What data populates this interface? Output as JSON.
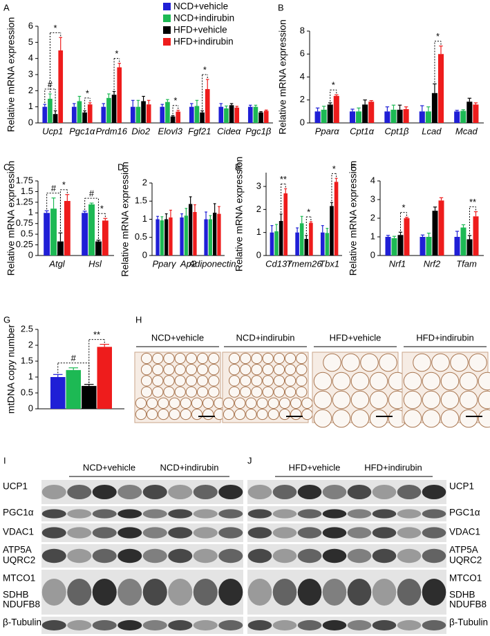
{
  "chart_data": [
    {
      "type": "bar",
      "panel": "A",
      "ylabel": "Relative mRNA expression",
      "legend": "top",
      "categories": [
        "Ucp1",
        "Pgc1α",
        "Prdm16",
        "Dio2",
        "Elovl3",
        "Fgf21",
        "Cideα",
        "Pgc1β"
      ],
      "series": [
        {
          "name": "NCD+vehicle",
          "color": "#1f1fd6",
          "values": [
            1.0,
            1.0,
            1.0,
            1.0,
            1.0,
            1.0,
            1.0,
            1.0
          ],
          "errors": [
            0.15,
            0.2,
            0.2,
            0.4,
            0.15,
            0.2,
            0.2,
            0.1
          ]
        },
        {
          "name": "NCD+indirubin",
          "color": "#1db954",
          "values": [
            1.5,
            1.35,
            1.55,
            1.0,
            1.3,
            1.05,
            0.9,
            1.0
          ],
          "errors": [
            0.3,
            0.3,
            0.25,
            0.4,
            0.15,
            0.35,
            0.15,
            0.1
          ]
        },
        {
          "name": "HFD+vehicle",
          "color": "#000000",
          "values": [
            0.55,
            0.65,
            1.75,
            1.35,
            0.4,
            0.65,
            1.1,
            0.65
          ],
          "errors": [
            0.2,
            0.1,
            0.2,
            0.3,
            0.05,
            0.1,
            0.1,
            0.05
          ]
        },
        {
          "name": "HFD+indirubin",
          "color": "#ee1c1c",
          "values": [
            4.5,
            1.15,
            3.45,
            1.15,
            0.7,
            2.1,
            0.95,
            0.75
          ],
          "errors": [
            0.8,
            0.1,
            0.25,
            0.25,
            0.08,
            0.6,
            0.08,
            0.05
          ]
        }
      ],
      "ylim": [
        0,
        6
      ],
      "yticks": [
        0,
        1,
        2,
        3,
        4,
        5,
        6
      ],
      "annotations": [
        {
          "text": "#",
          "category": 0,
          "series": [
            0,
            2
          ]
        },
        {
          "text": "*",
          "category": 0,
          "series": [
            1,
            3
          ]
        },
        {
          "text": "*",
          "category": 1,
          "series": [
            2,
            3
          ]
        },
        {
          "text": "*",
          "category": 2,
          "series": [
            2,
            3
          ]
        },
        {
          "text": "*",
          "category": 4,
          "series": [
            2,
            3
          ]
        },
        {
          "text": "*",
          "category": 5,
          "series": [
            2,
            3
          ]
        }
      ]
    },
    {
      "type": "bar",
      "panel": "B",
      "ylabel": "Relative mRNA expression",
      "categories": [
        "Pparα",
        "Cpt1α",
        "Cpt1β",
        "Lcad",
        "Mcad"
      ],
      "series": [
        {
          "color": "#1f1fd6",
          "values": [
            1.0,
            1.0,
            1.0,
            1.0,
            1.0
          ],
          "errors": [
            0.3,
            0.2,
            0.4,
            0.5,
            0.1
          ]
        },
        {
          "color": "#1db954",
          "values": [
            1.15,
            1.0,
            1.15,
            1.0,
            1.05
          ],
          "errors": [
            0.3,
            0.3,
            0.4,
            0.4,
            0.1
          ]
        },
        {
          "color": "#000000",
          "values": [
            1.6,
            1.6,
            1.15,
            2.6,
            1.85
          ],
          "errors": [
            0.15,
            0.4,
            0.4,
            0.8,
            0.3
          ]
        },
        {
          "color": "#ee1c1c",
          "values": [
            2.35,
            1.85,
            1.2,
            6.0,
            1.6
          ],
          "errors": [
            0.1,
            0.1,
            0.2,
            0.7,
            0.15
          ]
        }
      ],
      "ylim": [
        0,
        8
      ],
      "yticks": [
        0,
        2,
        4,
        6,
        8
      ],
      "annotations": [
        {
          "text": "*",
          "category": 0,
          "series": [
            2,
            3
          ]
        },
        {
          "text": "*",
          "category": 3,
          "series": [
            2,
            3
          ]
        }
      ]
    },
    {
      "type": "bar",
      "panel": "C",
      "ylabel": "Relative mRNA expression",
      "categories": [
        "Atgl",
        "Hsl"
      ],
      "series": [
        {
          "color": "#1f1fd6",
          "values": [
            1.0,
            1.0
          ],
          "errors": [
            0.05,
            0.04
          ]
        },
        {
          "color": "#1db954",
          "values": [
            1.1,
            1.2
          ],
          "errors": [
            0.25,
            0.03
          ]
        },
        {
          "color": "#000000",
          "values": [
            0.33,
            0.33
          ],
          "errors": [
            0.2,
            0.03
          ]
        },
        {
          "color": "#ee1c1c",
          "values": [
            1.28,
            0.82
          ],
          "errors": [
            0.15,
            0.05
          ]
        }
      ],
      "ylim": [
        0,
        1.75
      ],
      "yticks": [
        0,
        0.25,
        0.5,
        0.75,
        1,
        1.25,
        1.5,
        1.75
      ],
      "annotations": [
        {
          "text": "#",
          "category": 0,
          "series": [
            0,
            2
          ]
        },
        {
          "text": "*",
          "category": 0,
          "series": [
            2,
            3
          ]
        },
        {
          "text": "#",
          "category": 1,
          "series": [
            0,
            2
          ]
        },
        {
          "text": "*",
          "category": 1,
          "series": [
            2,
            3
          ]
        }
      ]
    },
    {
      "type": "bar",
      "panel": "D",
      "ylabel": "Relative mRNA expression",
      "categories": [
        "Pparγ",
        "Ap2",
        "Adiponectin"
      ],
      "series": [
        {
          "color": "#1f1fd6",
          "values": [
            1.0,
            1.05,
            1.0
          ],
          "errors": [
            0.08,
            0.1,
            0.2
          ]
        },
        {
          "color": "#1db954",
          "values": [
            0.97,
            1.1,
            1.0
          ],
          "errors": [
            0.1,
            0.2,
            0.1
          ]
        },
        {
          "color": "#000000",
          "values": [
            1.0,
            1.42,
            1.18
          ],
          "errors": [
            0.15,
            0.2,
            0.25
          ]
        },
        {
          "color": "#ee1c1c",
          "values": [
            1.05,
            1.2,
            1.15
          ],
          "errors": [
            0.2,
            0.2,
            0.2
          ]
        }
      ],
      "ylim": [
        0,
        2
      ],
      "yticks": [
        0,
        0.5,
        1,
        1.5,
        2
      ]
    },
    {
      "type": "bar",
      "panel": "E",
      "ylabel": "Relative mRNA expression",
      "categories": [
        "Cd137",
        "Tmem26",
        "Tbx1"
      ],
      "series": [
        {
          "color": "#1f1fd6",
          "values": [
            1.0,
            1.0,
            1.0
          ],
          "errors": [
            0.3,
            0.2,
            0.3
          ]
        },
        {
          "color": "#1db954",
          "values": [
            1.05,
            1.4,
            0.98
          ],
          "errors": [
            0.3,
            0.3,
            0.2
          ]
        },
        {
          "color": "#000000",
          "values": [
            1.5,
            0.72,
            2.15
          ],
          "errors": [
            0.3,
            0.15,
            0.15
          ]
        },
        {
          "color": "#ee1c1c",
          "values": [
            2.7,
            1.42,
            3.2
          ],
          "errors": [
            0.2,
            0.05,
            0.15
          ]
        }
      ],
      "ylim": [
        0,
        3.6
      ],
      "yticks": [
        0,
        1,
        2,
        3
      ],
      "annotations": [
        {
          "text": "**",
          "category": 0,
          "series": [
            2,
            3
          ]
        },
        {
          "text": "*",
          "category": 1,
          "series": [
            2,
            3
          ]
        },
        {
          "text": "*",
          "category": 2,
          "series": [
            2,
            3
          ]
        }
      ]
    },
    {
      "type": "bar",
      "panel": "F",
      "ylabel": "Relative mRNA expression",
      "categories": [
        "Nrf1",
        "Nrf2",
        "Tfam"
      ],
      "series": [
        {
          "color": "#1f1fd6",
          "values": [
            1.0,
            1.0,
            1.0
          ],
          "errors": [
            0.08,
            0.1,
            0.3
          ]
        },
        {
          "color": "#1db954",
          "values": [
            0.93,
            1.0,
            1.5
          ],
          "errors": [
            0.1,
            0.2,
            0.15
          ]
        },
        {
          "color": "#000000",
          "values": [
            1.1,
            2.4,
            0.87
          ],
          "errors": [
            0.15,
            0.2,
            0.2
          ]
        },
        {
          "color": "#ee1c1c",
          "values": [
            2.0,
            2.95,
            2.1
          ],
          "errors": [
            0.05,
            0.15,
            0.25
          ]
        }
      ],
      "ylim": [
        0,
        4
      ],
      "yticks": [
        0,
        1,
        2,
        3,
        4
      ],
      "annotations": [
        {
          "text": "*",
          "category": 0,
          "series": [
            2,
            3
          ]
        },
        {
          "text": "**",
          "category": 2,
          "series": [
            2,
            3
          ]
        }
      ]
    },
    {
      "type": "bar",
      "panel": "G",
      "ylabel": "mtDNA copy number",
      "categories": [
        null
      ],
      "series": [
        {
          "color": "#1f1fd6",
          "values": [
            1.0
          ],
          "errors": [
            0.08
          ]
        },
        {
          "color": "#1db954",
          "values": [
            1.22
          ],
          "errors": [
            0.07
          ]
        },
        {
          "color": "#000000",
          "values": [
            0.72
          ],
          "errors": [
            0.05
          ]
        },
        {
          "color": "#ee1c1c",
          "values": [
            1.95
          ],
          "errors": [
            0.08
          ]
        }
      ],
      "ylim": [
        0,
        2.5
      ],
      "yticks": [
        0,
        0.5,
        1,
        1.5,
        2,
        2.5
      ],
      "annotations": [
        {
          "text": "#",
          "category": 0,
          "series": [
            0,
            2
          ]
        },
        {
          "text": "**",
          "category": 0,
          "series": [
            2,
            3
          ]
        }
      ]
    }
  ],
  "histology": {
    "panel": "H",
    "titles": [
      "NCD+vehicle",
      "NCD+indirubin",
      "HFD+vehicle",
      "HFD+indirubin"
    ]
  },
  "blots": [
    {
      "panel": "I",
      "groups": [
        "NCD+vehicle",
        "NCD+indirubin"
      ],
      "labels": [
        "UCP1",
        "PGC1α",
        "VDAC1",
        "ATP5A",
        "UQRC2",
        "MTCO1",
        "SDHB",
        "NDUFB8",
        "β-Tubulin"
      ]
    },
    {
      "panel": "J",
      "groups": [
        "HFD+vehicle",
        "HFD+indirubin"
      ],
      "labels": [
        "UCP1",
        "PGC1α",
        "VDAC1",
        "ATP5A",
        "UQRC2",
        "MTCO1",
        "SDHB",
        "NDUFB8",
        "β-Tubulin"
      ]
    }
  ]
}
